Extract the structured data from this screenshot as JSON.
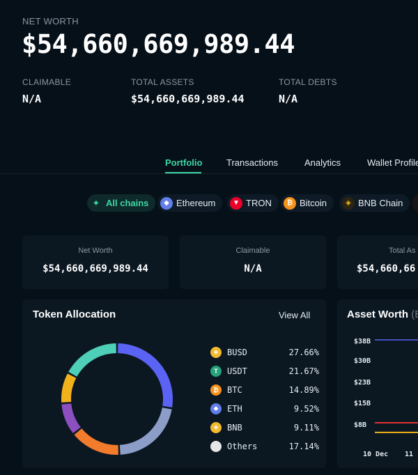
{
  "summary": {
    "net_worth_label": "NET WORTH",
    "net_worth_value": "$54,660,669,989.44",
    "claimable_label": "CLAIMABLE",
    "claimable_value": "N/A",
    "total_assets_label": "TOTAL ASSETS",
    "total_assets_value": "$54,660,669,989.44",
    "total_debts_label": "TOTAL DEBTS",
    "total_debts_value": "N/A"
  },
  "tabs": [
    {
      "label": "Portfolio",
      "active": true
    },
    {
      "label": "Transactions",
      "active": false
    },
    {
      "label": "Analytics",
      "active": false
    },
    {
      "label": "Wallet Profile",
      "active": false
    }
  ],
  "chains": [
    {
      "label": "All chains",
      "icon": "all-chains-icon",
      "color": "#3ed6a3",
      "active": true
    },
    {
      "label": "Ethereum",
      "icon": "ethereum-icon",
      "color": "#627eea",
      "active": false
    },
    {
      "label": "TRON",
      "icon": "tron-icon",
      "color": "#eb0029",
      "active": false
    },
    {
      "label": "Bitcoin",
      "icon": "bitcoin-icon",
      "color": "#f7931a",
      "active": false
    },
    {
      "label": "BNB Chain",
      "icon": "bnb-icon",
      "color": "#f3ba2f",
      "active": false
    }
  ],
  "stat_cards": [
    {
      "title": "Net Worth",
      "value": "$54,660,669,989.44"
    },
    {
      "title": "Claimable",
      "value": "N/A"
    },
    {
      "title": "Total As",
      "value": "$54,660,66"
    }
  ],
  "token_allocation": {
    "title": "Token Allocation",
    "view_all": "View All",
    "tokens": [
      {
        "symbol": "BUSD",
        "percent": "27.66%",
        "value": 27.66,
        "color": "#5b63f5",
        "icon_color": "#f3ba2f"
      },
      {
        "symbol": "USDT",
        "percent": "21.67%",
        "value": 21.67,
        "color": "#8c9dc8",
        "icon_color": "#26a17b"
      },
      {
        "symbol": "BTC",
        "percent": "14.89%",
        "value": 14.89,
        "color": "#f37b2c",
        "icon_color": "#f7931a"
      },
      {
        "symbol": "ETH",
        "percent": "9.52%",
        "value": 9.52,
        "color": "#8c4fc0",
        "icon_color": "#627eea"
      },
      {
        "symbol": "BNB",
        "percent": "9.11%",
        "value": 9.11,
        "color": "#f2b21b",
        "icon_color": "#f3ba2f"
      },
      {
        "symbol": "Others",
        "percent": "17.14%",
        "value": 17.14,
        "color": "#4ecfb7",
        "icon_color": "#e6e6e6"
      }
    ]
  },
  "asset_worth": {
    "title": "Asset Worth",
    "title_suffix": "(B",
    "y_ticks": [
      "$38B",
      "$30B",
      "$23B",
      "$15B",
      "$8B"
    ],
    "x_ticks": [
      "10 Dec",
      "11"
    ]
  },
  "chart_data": {
    "type": "line",
    "title": "Asset Worth",
    "x": [
      "10 Dec",
      "11"
    ],
    "series": [
      {
        "color": "#5b63f5",
        "values": [
          38,
          38
        ]
      },
      {
        "color": "#e5312b",
        "values": [
          8,
          8
        ]
      },
      {
        "color": "#f2b21b",
        "values": [
          4.5,
          4.5
        ]
      }
    ],
    "ylim": [
      4,
      40
    ]
  }
}
